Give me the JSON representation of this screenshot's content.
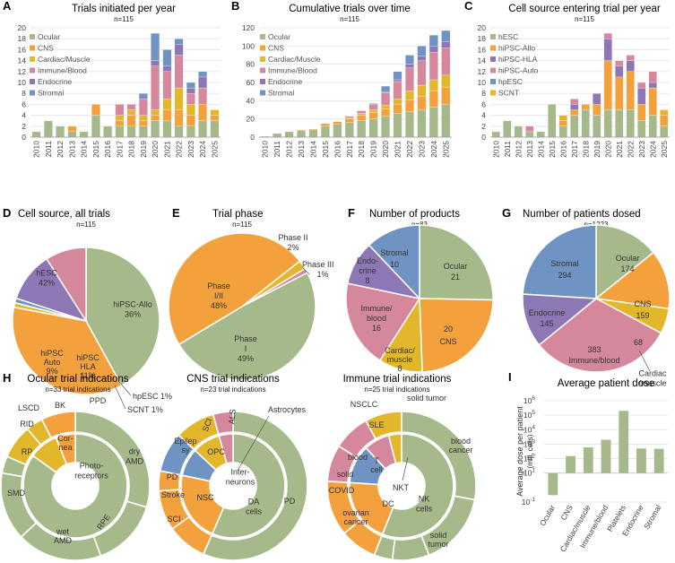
{
  "colors": {
    "Ocular": "#a6b98b",
    "CNS": "#f2a13c",
    "Cardiac/Muscle": "#e3b72b",
    "Immune/Blood": "#d5879c",
    "Endocrine": "#8d78b5",
    "Stromal": "#6f93c2",
    "hESC": "#a6b98b",
    "hiPSC-Allo": "#f2a13c",
    "hiPSC-HLA": "#8d78b5",
    "hiPSC-Auto": "#d5879c",
    "hpESC": "#6f93c2",
    "SCNT": "#e3b72b",
    "gridline": "#e3e3e3"
  },
  "chart_data": [
    {
      "id": "A",
      "type": "bar",
      "stacked": true,
      "letter": "A",
      "title": "Trials initiated per year",
      "subtitle": "n=115",
      "categories": [
        "2010",
        "2011",
        "2012",
        "2013",
        "2014",
        "2015",
        "2016",
        "2017",
        "2018",
        "2019",
        "2020",
        "2021",
        "2022",
        "2023",
        "2024",
        "2025"
      ],
      "ylim": [
        0,
        20
      ],
      "yticks": [
        0,
        2,
        4,
        6,
        8,
        10,
        12,
        14,
        16,
        18,
        20
      ],
      "legend_position": "top-left",
      "series": [
        {
          "name": "Ocular",
          "values": [
            1,
            3,
            2,
            1,
            1,
            4,
            2,
            2,
            2,
            2,
            3,
            3,
            2,
            2,
            3,
            3
          ]
        },
        {
          "name": "CNS",
          "values": [
            0,
            0,
            0,
            1,
            0,
            2,
            0,
            1,
            2,
            1,
            1,
            2,
            3,
            2,
            3,
            1
          ]
        },
        {
          "name": "Cardiac/Muscle",
          "values": [
            0,
            0,
            0,
            0,
            0,
            0,
            0,
            1,
            1,
            1,
            1,
            2,
            4,
            2,
            0,
            1
          ]
        },
        {
          "name": "Immune/Blood",
          "values": [
            0,
            0,
            0,
            0,
            0,
            0,
            0,
            2,
            1,
            3,
            8,
            5,
            6,
            2,
            3,
            0
          ]
        },
        {
          "name": "Endocrine",
          "values": [
            0,
            0,
            0,
            0,
            0,
            0,
            0,
            0,
            0,
            0,
            1,
            1,
            2,
            1,
            2,
            0
          ]
        },
        {
          "name": "Stromal",
          "values": [
            0,
            0,
            0,
            0,
            0,
            0,
            0,
            0,
            0,
            1,
            5,
            3,
            1,
            1,
            1,
            0
          ]
        }
      ]
    },
    {
      "id": "B",
      "type": "bar",
      "stacked": true,
      "letter": "B",
      "title": "Cumulative trials over time",
      "subtitle": "n=115",
      "categories": [
        "2010",
        "2011",
        "2012",
        "2013",
        "2014",
        "2015",
        "2016",
        "2017",
        "2018",
        "2019",
        "2020",
        "2021",
        "2022",
        "2023",
        "2024",
        "2025"
      ],
      "ylim": [
        0,
        120
      ],
      "yticks": [
        0,
        20,
        40,
        60,
        80,
        100,
        120
      ],
      "legend_position": "top-left",
      "series": [
        {
          "name": "Ocular",
          "values": [
            1,
            4,
            6,
            7,
            8,
            12,
            14,
            16,
            18,
            20,
            23,
            26,
            28,
            30,
            33,
            36
          ]
        },
        {
          "name": "CNS",
          "values": [
            0,
            0,
            0,
            1,
            1,
            3,
            3,
            4,
            6,
            7,
            8,
            10,
            13,
            15,
            18,
            19
          ]
        },
        {
          "name": "Cardiac/Muscle",
          "values": [
            0,
            0,
            0,
            0,
            0,
            0,
            0,
            1,
            2,
            3,
            4,
            6,
            10,
            12,
            12,
            13
          ]
        },
        {
          "name": "Immune/Blood",
          "values": [
            0,
            0,
            0,
            0,
            0,
            0,
            0,
            2,
            3,
            6,
            14,
            19,
            25,
            27,
            30,
            30
          ]
        },
        {
          "name": "Endocrine",
          "values": [
            0,
            0,
            0,
            0,
            0,
            0,
            0,
            0,
            0,
            0,
            1,
            2,
            4,
            5,
            7,
            7
          ]
        },
        {
          "name": "Stromal",
          "values": [
            0,
            0,
            0,
            0,
            0,
            0,
            0,
            0,
            0,
            1,
            6,
            9,
            10,
            11,
            12,
            12
          ]
        }
      ]
    },
    {
      "id": "C",
      "type": "bar",
      "stacked": true,
      "letter": "C",
      "title": "Cell source entering trial per year",
      "subtitle": "n=115",
      "categories": [
        "2010",
        "2011",
        "2012",
        "2013",
        "2014",
        "2015",
        "2016",
        "2017",
        "2018",
        "2019",
        "2020",
        "2021",
        "2022",
        "2023",
        "2024",
        "2025"
      ],
      "ylim": [
        0,
        20
      ],
      "yticks": [
        0,
        2,
        4,
        6,
        8,
        10,
        12,
        14,
        16,
        18,
        20
      ],
      "legend_position": "top-left",
      "series": [
        {
          "name": "hESC",
          "values": [
            1,
            3,
            2,
            1,
            1,
            6,
            2,
            4,
            5,
            4,
            5,
            5,
            5,
            3,
            4,
            2
          ]
        },
        {
          "name": "hiPSC-Allo",
          "values": [
            0,
            0,
            0,
            0,
            0,
            0,
            1,
            1,
            1,
            2,
            9,
            6,
            7,
            3,
            5,
            2
          ]
        },
        {
          "name": "hiPSC-HLA",
          "values": [
            0,
            0,
            0,
            0,
            0,
            0,
            0,
            1,
            0,
            2,
            4,
            2,
            2,
            3,
            1,
            0
          ]
        },
        {
          "name": "hiPSC-Auto",
          "values": [
            0,
            0,
            0,
            1,
            0,
            0,
            0,
            1,
            0,
            0,
            1,
            1,
            1,
            1,
            2,
            0
          ]
        },
        {
          "name": "hpESC",
          "values": [
            0,
            0,
            0,
            0,
            0,
            0,
            0,
            0,
            0,
            0,
            0,
            0,
            0,
            0,
            0,
            0
          ]
        },
        {
          "name": "SCNT",
          "values": [
            0,
            0,
            0,
            0,
            0,
            0,
            1,
            0,
            0,
            0,
            0,
            0,
            0,
            0,
            0,
            1
          ]
        }
      ]
    },
    {
      "id": "D",
      "type": "pie",
      "letter": "D",
      "title": "Cell source, all trials",
      "subtitle": "n=115",
      "slices": [
        {
          "key": "hESC",
          "text": "hESC",
          "pct": "42%",
          "value": 42
        },
        {
          "key": "hiPSC-Allo",
          "text": "hiPSC-Allo",
          "pct": "36%",
          "value": 36
        },
        {
          "key": "SCNT",
          "text": "SCNT 1%",
          "pct": "",
          "value": 1
        },
        {
          "key": "hpESC",
          "text": "hpESC 1%",
          "pct": "",
          "value": 1
        },
        {
          "key": "hiPSC-HLA",
          "text": "hiPSC HLA",
          "pct": "11%",
          "value": 11
        },
        {
          "key": "hiPSC-Auto",
          "text": "hiPSC Auto",
          "pct": "9%",
          "value": 9
        }
      ]
    },
    {
      "id": "E",
      "type": "pie",
      "letter": "E",
      "title": "Trial phase",
      "subtitle": "n=115",
      "slices": [
        {
          "key": "CNS",
          "text": "Phase I/II",
          "pct": "48%",
          "value": 48
        },
        {
          "key": "Cardiac/Muscle",
          "text": "Phase II",
          "pct": "2%",
          "value": 2
        },
        {
          "key": "Immune/Blood",
          "text": "Phase III",
          "pct": "1%",
          "value": 1
        },
        {
          "key": "Ocular",
          "text": "Phase I",
          "pct": "49%",
          "value": 49
        }
      ]
    },
    {
      "id": "F",
      "type": "pie",
      "letter": "F",
      "title": "Number of products",
      "subtitle": "n=83",
      "slices": [
        {
          "key": "Ocular",
          "text": "Ocular",
          "value": 21
        },
        {
          "key": "CNS",
          "text": "CNS",
          "value": 20
        },
        {
          "key": "Cardiac/Muscle",
          "text": "Cardiac/ muscle",
          "value": 8
        },
        {
          "key": "Immune/Blood",
          "text": "Immune/ blood",
          "value": 16
        },
        {
          "key": "Endocrine",
          "text": "Endo- crine",
          "value": 8
        },
        {
          "key": "Stromal",
          "text": "Stromal",
          "value": 10
        }
      ]
    },
    {
      "id": "G",
      "type": "pie",
      "letter": "G",
      "title": "Number of patients dosed",
      "subtitle": "n=1223",
      "slices": [
        {
          "key": "Ocular",
          "text": "Ocular",
          "value": 174
        },
        {
          "key": "CNS",
          "text": "CNS",
          "value": 159
        },
        {
          "key": "Cardiac/Muscle",
          "text": "Cardiac /muscle",
          "value": 68
        },
        {
          "key": "Immune/Blood",
          "text": "Immune/blood",
          "value": 383
        },
        {
          "key": "Endocrine",
          "text": "Endocrine",
          "value": 145
        },
        {
          "key": "Stromal",
          "text": "Stromal",
          "value": 294
        }
      ]
    },
    {
      "id": "H1",
      "type": "sunburst",
      "letter": "H",
      "title": "Ocular trial indications",
      "subtitle": "n=33 trial indications",
      "inner": [
        {
          "key": "Ocular",
          "text": "Photo- receptors",
          "value": 28
        },
        {
          "key": "Cardiac/Muscle",
          "text": "Cor- nea",
          "value": 3
        },
        {
          "key": "CNS",
          "text": "",
          "value": 2
        }
      ],
      "outer": [
        {
          "key": "Ocular",
          "text": "dry AMD",
          "value": 8
        },
        {
          "key": "Ocular",
          "text": "RPE",
          "value": 0
        },
        {
          "key": "Ocular",
          "text": "wet AMD",
          "value": 4
        },
        {
          "key": "Ocular",
          "text": "SMD",
          "value": 5
        },
        {
          "key": "Ocular",
          "text": "RP",
          "value": 4
        },
        {
          "key": "Ocular",
          "text": "RID",
          "value": 1
        },
        {
          "key": "Cardiac/Muscle",
          "text": "LSCD",
          "value": 2
        },
        {
          "key": "Cardiac/Muscle",
          "text": "BK",
          "value": 1
        },
        {
          "key": "CNS",
          "text": "PPD",
          "value": 2
        }
      ],
      "extra_labels": {
        "rpe": "RPE"
      }
    },
    {
      "id": "H2",
      "type": "sunburst",
      "title": "CNS trial indications",
      "subtitle": "n=23 trial indications",
      "inner": [
        {
          "key": "Ocular",
          "text": "DA cells",
          "value": 13
        },
        {
          "key": "CNS",
          "text": "NSC",
          "value": 5
        },
        {
          "key": "Stromal",
          "text": "Inter- neurons",
          "value": 2
        },
        {
          "key": "Cardiac/Muscle",
          "text": "OPC",
          "value": 2
        },
        {
          "key": "Immune/Blood",
          "text": "Astrocytes",
          "value": 1
        }
      ],
      "outer": [
        {
          "key": "Ocular",
          "text": "PD",
          "value": 13
        },
        {
          "key": "CNS",
          "text": "SCI",
          "value": 2
        },
        {
          "key": "CNS",
          "text": "Stroke",
          "value": 2
        },
        {
          "key": "CNS",
          "text": "PD",
          "value": 1
        },
        {
          "key": "Stromal",
          "text": "Epilep sy",
          "value": 2
        },
        {
          "key": "Cardiac/Muscle",
          "text": "SCI",
          "value": 2
        },
        {
          "key": "Immune/Blood",
          "text": "ALS",
          "value": 1
        }
      ]
    },
    {
      "id": "H3",
      "type": "sunburst",
      "title": "Immune trial indications",
      "subtitle": "n=25 trial indications",
      "inner": [
        {
          "key": "Ocular",
          "text": "NK cells",
          "value": 14
        },
        {
          "key": "CNS",
          "text": "T cell",
          "value": 5
        },
        {
          "key": "Stromal",
          "text": "DC",
          "value": 3
        },
        {
          "key": "Immune/Blood",
          "text": "NKT",
          "value": 2
        },
        {
          "key": "Cardiac/Muscle",
          "text": "",
          "value": 1
        }
      ],
      "outer": [
        {
          "key": "Ocular",
          "text": "blood cancer",
          "value": 7
        },
        {
          "key": "Ocular",
          "text": "solid tumor",
          "value": 4
        },
        {
          "key": "Ocular",
          "text": "ovarian cancer",
          "value": 2
        },
        {
          "key": "Ocular",
          "text": "COVID",
          "value": 1
        },
        {
          "key": "CNS",
          "text": "solid",
          "value": 2
        },
        {
          "key": "CNS",
          "text": "blood",
          "value": 3
        },
        {
          "key": "Immune/Blood",
          "text": "SLE",
          "value": 2
        },
        {
          "key": "Immune/Blood",
          "text": "NSCLC",
          "value": 2
        },
        {
          "key": "Cardiac/Muscle",
          "text": "solid tumor",
          "value": 2
        }
      ]
    },
    {
      "id": "I",
      "type": "bar",
      "letter": "I",
      "title": "Average patient dose",
      "ylabel": "Average dose per patient",
      "ylabel2": "(mill. cells)",
      "yscale": "log",
      "categories": [
        "Ocular",
        "CNS",
        "Cardiac/muscle",
        "Immune/blood",
        "Platelets",
        "Endocrine",
        "Stromal"
      ],
      "values": [
        0.3,
        150,
        600,
        2000,
        200000,
        500,
        480
      ],
      "yticks": [
        {
          "base": "10",
          "exp": "-1",
          "value": 0.1
        },
        {
          "base": "10",
          "exp": "1",
          "value": 10
        },
        {
          "base": "10",
          "exp": "2",
          "value": 100
        },
        {
          "base": "10",
          "exp": "3",
          "value": 1000
        },
        {
          "base": "10",
          "exp": "4",
          "value": 10000
        },
        {
          "base": "10",
          "exp": "5",
          "value": 100000
        },
        {
          "base": "10",
          "exp": "6",
          "value": 1000000
        }
      ]
    }
  ]
}
